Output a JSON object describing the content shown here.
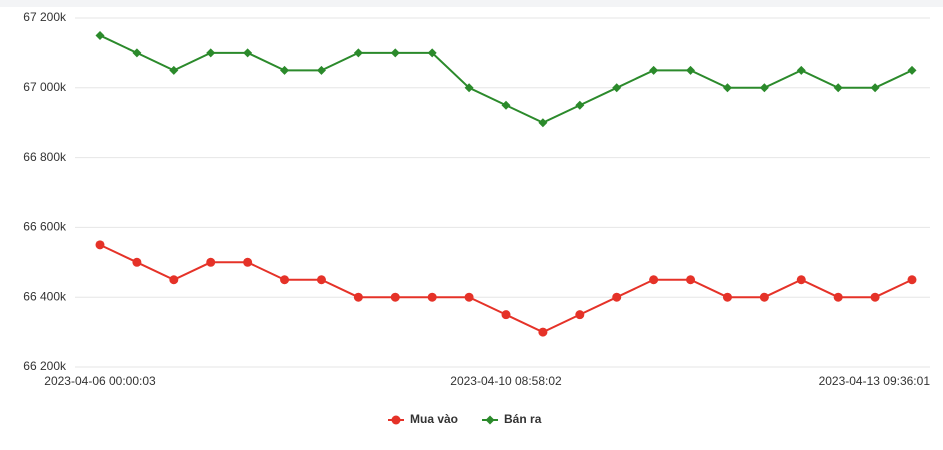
{
  "chart_data": {
    "type": "line",
    "categories": [
      "2023-04-06 00:00:03",
      null,
      null,
      null,
      null,
      null,
      null,
      null,
      null,
      null,
      null,
      "2023-04-10 08:58:02",
      null,
      null,
      null,
      null,
      null,
      null,
      null,
      null,
      null,
      null,
      "2023-04-13 09:36:01"
    ],
    "series": [
      {
        "name": "Mua vào",
        "color": "#e53228",
        "marker": "circle",
        "values": [
          66550000,
          66500000,
          66450000,
          66500000,
          66500000,
          66450000,
          66450000,
          66400000,
          66400000,
          66400000,
          66400000,
          66350000,
          66300000,
          66350000,
          66400000,
          66450000,
          66450000,
          66400000,
          66400000,
          66450000,
          66400000,
          66400000,
          66450000
        ]
      },
      {
        "name": "Bán ra",
        "color": "#2b8a2b",
        "marker": "diamond",
        "values": [
          67150000,
          67100000,
          67050000,
          67100000,
          67100000,
          67050000,
          67050000,
          67100000,
          67100000,
          67100000,
          67000000,
          66950000,
          66900000,
          66950000,
          67000000,
          67050000,
          67050000,
          67000000,
          67000000,
          67050000,
          67000000,
          67000000,
          67050000
        ]
      }
    ],
    "ylim": [
      66200000,
      67200000
    ],
    "yticks": [
      {
        "value": 66200000,
        "label": "66 200k"
      },
      {
        "value": 66400000,
        "label": "66 400k"
      },
      {
        "value": 66600000,
        "label": "66 600k"
      },
      {
        "value": 66800000,
        "label": "66 800k"
      },
      {
        "value": 67000000,
        "label": "67 000k"
      },
      {
        "value": 67200000,
        "label": "67 200k"
      }
    ],
    "grid": true,
    "legend": "bottom"
  }
}
